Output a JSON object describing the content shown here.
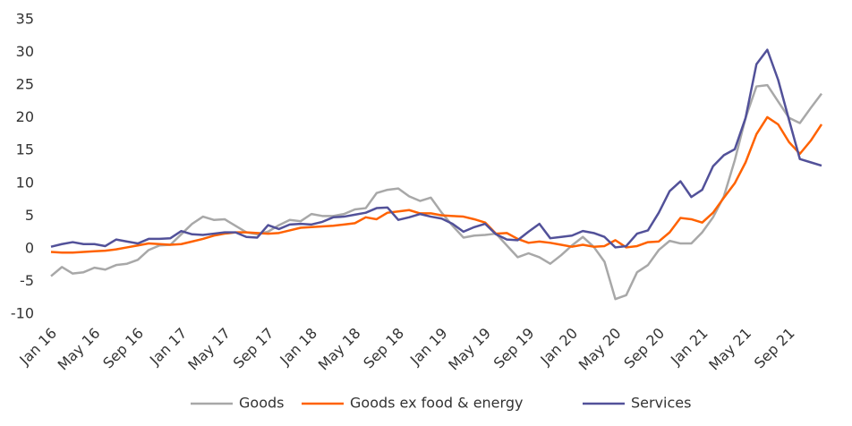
{
  "chart_data": {
    "type": "line",
    "categories": [
      "Jan 16",
      null,
      null,
      null,
      "May 16",
      null,
      null,
      null,
      "Sep 16",
      null,
      null,
      null,
      "Jan 17",
      null,
      null,
      null,
      "May 17",
      null,
      null,
      null,
      "Sep 17",
      null,
      null,
      null,
      "Jan 18",
      null,
      null,
      null,
      "May 18",
      null,
      null,
      null,
      "Sep 18",
      null,
      null,
      null,
      "Jan 19",
      null,
      null,
      null,
      "May 19",
      null,
      null,
      null,
      "Sep 19",
      null,
      null,
      null,
      "Jan 20",
      null,
      null,
      null,
      "May 20",
      null,
      null,
      null,
      "Sep 20",
      null,
      null,
      null,
      "Jan 21",
      null,
      null,
      null,
      "May 21",
      null,
      null,
      null,
      "Sep 21",
      null,
      null,
      null
    ],
    "series": [
      {
        "name": "Goods",
        "color": "#a8a8a8",
        "values": [
          -4.2,
          -2.8,
          -3.8,
          -3.6,
          -2.9,
          -3.2,
          -2.5,
          -2.3,
          -1.7,
          -0.2,
          0.5,
          0.6,
          2.2,
          3.8,
          4.9,
          4.4,
          4.5,
          3.5,
          2.5,
          2.2,
          2.6,
          3.6,
          4.4,
          4.2,
          5.3,
          5.0,
          5.0,
          5.3,
          6.0,
          6.2,
          8.5,
          9.0,
          9.2,
          8.0,
          7.3,
          7.8,
          5.5,
          3.5,
          1.7,
          2.0,
          2.1,
          2.3,
          0.5,
          -1.3,
          -0.7,
          -1.3,
          -2.3,
          -1.0,
          0.5,
          1.8,
          0.3,
          -2.0,
          -7.7,
          -7.1,
          -3.6,
          -2.5,
          -0.2,
          1.2,
          0.8,
          0.8,
          2.5,
          4.8,
          8.0,
          13.5,
          20,
          24.8,
          25.0,
          22.5,
          20,
          19.2,
          21.5,
          23.7
        ]
      },
      {
        "name": "Goods ex food & energy",
        "color": "#ff6200",
        "values": [
          -0.5,
          -0.6,
          -0.6,
          -0.5,
          -0.4,
          -0.3,
          -0.1,
          0.2,
          0.5,
          0.8,
          0.7,
          0.6,
          0.7,
          1.1,
          1.5,
          2.0,
          2.3,
          2.5,
          2.5,
          2.4,
          2.3,
          2.4,
          2.8,
          3.2,
          3.3,
          3.4,
          3.5,
          3.7,
          3.9,
          4.8,
          4.5,
          5.5,
          5.7,
          5.9,
          5.4,
          5.4,
          5.1,
          5.0,
          4.9,
          4.5,
          4.0,
          2.3,
          2.4,
          1.5,
          0.9,
          1.1,
          0.9,
          0.6,
          0.3,
          0.6,
          0.3,
          0.4,
          1.3,
          0.2,
          0.4,
          1.0,
          1.1,
          2.5,
          4.7,
          4.5,
          4.0,
          5.5,
          7.8,
          10.0,
          13.2,
          17.5,
          20.1,
          19.0,
          16.3,
          14.5,
          16.5,
          19.0
        ]
      },
      {
        "name": "Services",
        "color": "#525199",
        "values": [
          0.3,
          0.7,
          1.0,
          0.7,
          0.7,
          0.4,
          1.4,
          1.1,
          0.8,
          1.5,
          1.5,
          1.6,
          2.7,
          2.2,
          2.1,
          2.3,
          2.5,
          2.5,
          1.8,
          1.7,
          3.6,
          3.0,
          3.7,
          3.8,
          3.7,
          4.1,
          4.8,
          4.9,
          5.2,
          5.5,
          6.2,
          6.3,
          4.4,
          4.8,
          5.3,
          4.9,
          4.6,
          3.8,
          2.6,
          3.3,
          3.8,
          2.2,
          1.4,
          1.3,
          2.6,
          3.8,
          1.6,
          1.8,
          2.0,
          2.7,
          2.4,
          1.8,
          0.2,
          0.4,
          2.3,
          2.8,
          5.5,
          8.8,
          10.3,
          7.9,
          9.0,
          12.6,
          14.3,
          15.2,
          20.0,
          28.2,
          30.4,
          25.8,
          19.7,
          13.7,
          13.2,
          12.7
        ]
      }
    ],
    "ylim": [
      -10,
      35
    ],
    "yticks": [
      -10,
      -5,
      0,
      5,
      10,
      15,
      20,
      25,
      30,
      35
    ],
    "grid": false,
    "legend": "bottom"
  }
}
